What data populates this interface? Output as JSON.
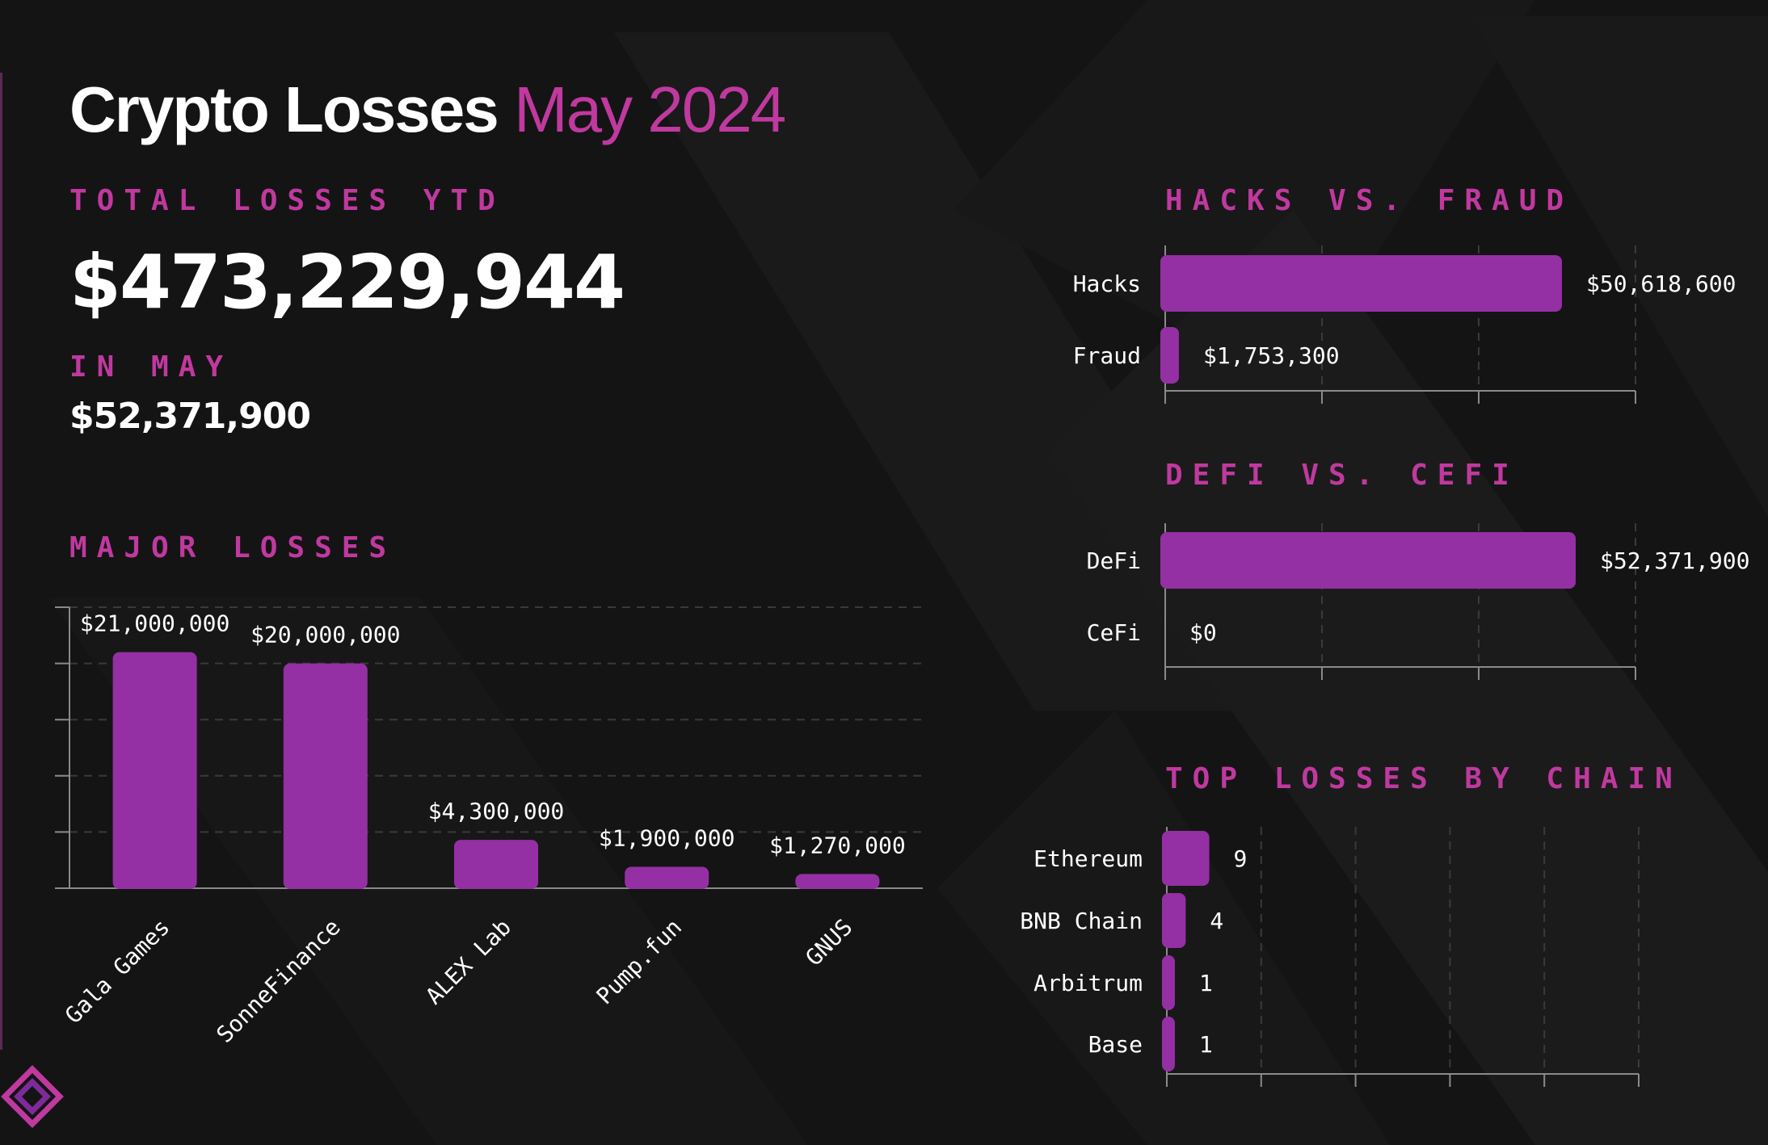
{
  "header": {
    "title_main": "Crypto Losses",
    "title_accent": "May 2024"
  },
  "summary": {
    "ytd_label": "TOTAL LOSSES YTD",
    "ytd_value": "$473,229,944",
    "month_label": "IN MAY",
    "month_value": "$52,371,900"
  },
  "colors": {
    "accent": "#c0399f",
    "bar": "#9430a3",
    "background": "#141414"
  },
  "chart_data": [
    {
      "type": "bar",
      "title": "MAJOR LOSSES",
      "categories": [
        "Gala Games",
        "SonneFinance",
        "ALEX Lab",
        "Pump.fun",
        "GNUS"
      ],
      "values": [
        21000000,
        20000000,
        4300000,
        1900000,
        1270000
      ],
      "value_labels": [
        "$21,000,000",
        "$20,000,000",
        "$4,300,000",
        "$1,900,000",
        "$1,270,000"
      ],
      "ylim": [
        0,
        25000000
      ],
      "grid": true
    },
    {
      "type": "bar",
      "orientation": "horizontal",
      "title": "HACKS VS. FRAUD",
      "categories": [
        "Hacks",
        "Fraud"
      ],
      "values": [
        50618600,
        1753300
      ],
      "value_labels": [
        "$50,618,600",
        "$1,753,300"
      ],
      "xlim": [
        0,
        60000000
      ],
      "grid": true
    },
    {
      "type": "bar",
      "orientation": "horizontal",
      "title": "DEFI VS. CEFI",
      "categories": [
        "DeFi",
        "CeFi"
      ],
      "values": [
        52371900,
        0
      ],
      "value_labels": [
        "$52,371,900",
        "$0"
      ],
      "xlim": [
        0,
        60000000
      ],
      "grid": true
    },
    {
      "type": "bar",
      "orientation": "horizontal",
      "title": "TOP LOSSES BY CHAIN",
      "categories": [
        "Ethereum",
        "BNB Chain",
        "Arbitrum",
        "Base"
      ],
      "values": [
        9,
        4,
        1,
        1
      ],
      "value_labels": [
        "9",
        "4",
        "1",
        "1"
      ],
      "xlim": [
        0,
        100
      ],
      "grid": true
    }
  ]
}
